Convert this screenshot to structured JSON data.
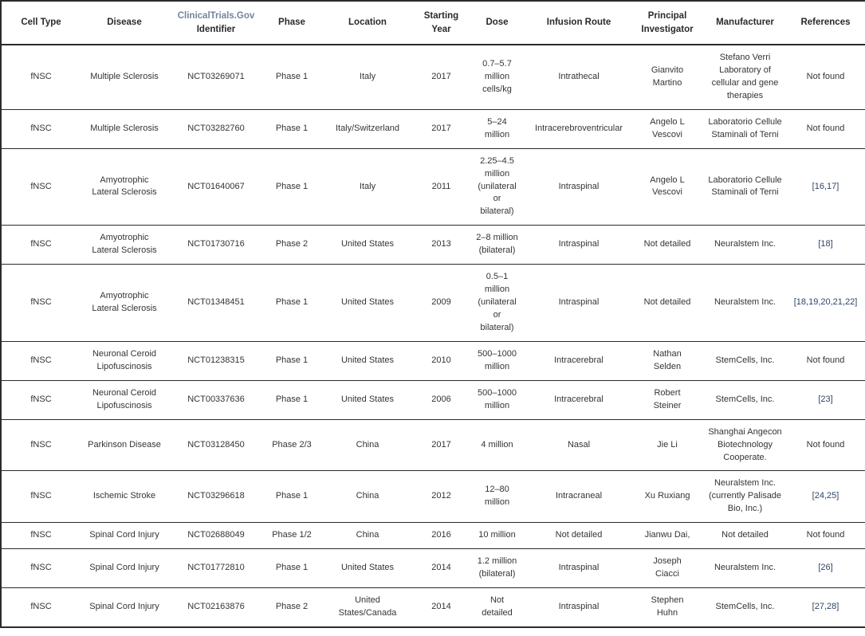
{
  "colors": {
    "text": "#343434",
    "border": "#2b2b2b",
    "header_link": "#75849b",
    "reference_link": "#2f4468"
  },
  "header": {
    "columns": [
      {
        "label": "Cell Type"
      },
      {
        "label": "Disease"
      },
      {
        "label_accent": "ClinicalTrials.Gov",
        "label": "Identifier"
      },
      {
        "label": "Phase"
      },
      {
        "label": "Location"
      },
      {
        "label": "Starting Year"
      },
      {
        "label": "Dose"
      },
      {
        "label": "Infusion Route"
      },
      {
        "label": "Principal Investigator"
      },
      {
        "label": "Manufacturer"
      },
      {
        "label": "References"
      }
    ]
  },
  "rows": [
    {
      "cell_type": "fNSC",
      "disease": "Multiple Sclerosis",
      "identifier": "NCT03269071",
      "phase": "Phase 1",
      "location": "Italy",
      "year": "2017",
      "dose": "0.7–5.7 million cells/kg",
      "route": "Intrathecal",
      "investigator": "Gianvito Martino",
      "manufacturer": "Stefano Verri Laboratory of cellular and gene therapies",
      "references": "Not found",
      "reference_is_link": false
    },
    {
      "cell_type": "fNSC",
      "disease": "Multiple Sclerosis",
      "identifier": "NCT03282760",
      "phase": "Phase 1",
      "location": "Italy/Switzerland",
      "year": "2017",
      "dose": "5–24 million",
      "route": "Intracerebroventricular",
      "investigator": "Angelo L Vescovi",
      "manufacturer": "Laboratorio Cellule Staminali of Terni",
      "references": "Not found",
      "reference_is_link": false
    },
    {
      "cell_type": "fNSC",
      "disease": "Amyotrophic Lateral Sclerosis",
      "identifier": "NCT01640067",
      "phase": "Phase 1",
      "location": "Italy",
      "year": "2011",
      "dose": "2.25–4.5 million (unilateral or bilateral)",
      "route": "Intraspinal",
      "investigator": "Angelo L Vescovi",
      "manufacturer": "Laboratorio Cellule Staminali of Terni",
      "references": "[16,17]",
      "reference_is_link": true
    },
    {
      "cell_type": "fNSC",
      "disease": "Amyotrophic Lateral Sclerosis",
      "identifier": "NCT01730716",
      "phase": "Phase 2",
      "location": "United States",
      "year": "2013",
      "dose": "2–8 million (bilateral)",
      "route": "Intraspinal",
      "investigator": "Not detailed",
      "manufacturer": "Neuralstem Inc.",
      "references": "[18]",
      "reference_is_link": true
    },
    {
      "cell_type": "fNSC",
      "disease": "Amyotrophic Lateral Sclerosis",
      "identifier": "NCT01348451",
      "phase": "Phase 1",
      "location": "United States",
      "year": "2009",
      "dose": "0.5–1 million (unilateral or bilateral)",
      "route": "Intraspinal",
      "investigator": "Not detailed",
      "manufacturer": "Neuralstem Inc.",
      "references": "[18,19,20,21,22]",
      "reference_is_link": true
    },
    {
      "cell_type": "fNSC",
      "disease": "Neuronal Ceroid Lipofuscinosis",
      "identifier": "NCT01238315",
      "phase": "Phase 1",
      "location": "United States",
      "year": "2010",
      "dose": "500–1000 million",
      "route": "Intracerebral",
      "investigator": "Nathan Selden",
      "manufacturer": "StemCells, Inc.",
      "references": "Not found",
      "reference_is_link": false
    },
    {
      "cell_type": "fNSC",
      "disease": "Neuronal Ceroid Lipofuscinosis",
      "identifier": "NCT00337636",
      "phase": "Phase 1",
      "location": "United States",
      "year": "2006",
      "dose": "500–1000 million",
      "route": "Intracerebral",
      "investigator": "Robert Steiner",
      "manufacturer": "StemCells, Inc.",
      "references": "[23]",
      "reference_is_link": true
    },
    {
      "cell_type": "fNSC",
      "disease": "Parkinson Disease",
      "identifier": "NCT03128450",
      "phase": "Phase 2/3",
      "location": "China",
      "year": "2017",
      "dose": "4 million",
      "route": "Nasal",
      "investigator": "Jie Li",
      "manufacturer": "Shanghai Angecon Biotechnology Cooperate.",
      "references": "Not found",
      "reference_is_link": false
    },
    {
      "cell_type": "fNSC",
      "disease": "Ischemic Stroke",
      "identifier": "NCT03296618",
      "phase": "Phase 1",
      "location": "China",
      "year": "2012",
      "dose": "12–80 million",
      "route": "Intracraneal",
      "investigator": "Xu Ruxiang",
      "manufacturer": "Neuralstem Inc. (currently Palisade Bio, Inc.)",
      "references": "[24,25]",
      "reference_is_link": true
    },
    {
      "cell_type": "fNSC",
      "disease": "Spinal Cord Injury",
      "identifier": "NCT02688049",
      "phase": "Phase 1/2",
      "location": "China",
      "year": "2016",
      "dose": "10 million",
      "route": "Not detailed",
      "investigator": "Jianwu Dai,",
      "manufacturer": "Not detailed",
      "references": "Not found",
      "reference_is_link": false
    },
    {
      "cell_type": "fNSC",
      "disease": "Spinal Cord Injury",
      "identifier": "NCT01772810",
      "phase": "Phase 1",
      "location": "United States",
      "year": "2014",
      "dose": "1.2 million (bilateral)",
      "route": "Intraspinal",
      "investigator": "Joseph Ciacci",
      "manufacturer": "Neuralstem Inc.",
      "references": "[26]",
      "reference_is_link": true
    },
    {
      "cell_type": "fNSC",
      "disease": "Spinal Cord Injury",
      "identifier": "NCT02163876",
      "phase": "Phase 2",
      "location": "United States/Canada",
      "year": "2014",
      "dose": "Not detailed",
      "route": "Intraspinal",
      "investigator": "Stephen Huhn",
      "manufacturer": "StemCells, Inc.",
      "references": "[27,28]",
      "reference_is_link": true
    }
  ]
}
